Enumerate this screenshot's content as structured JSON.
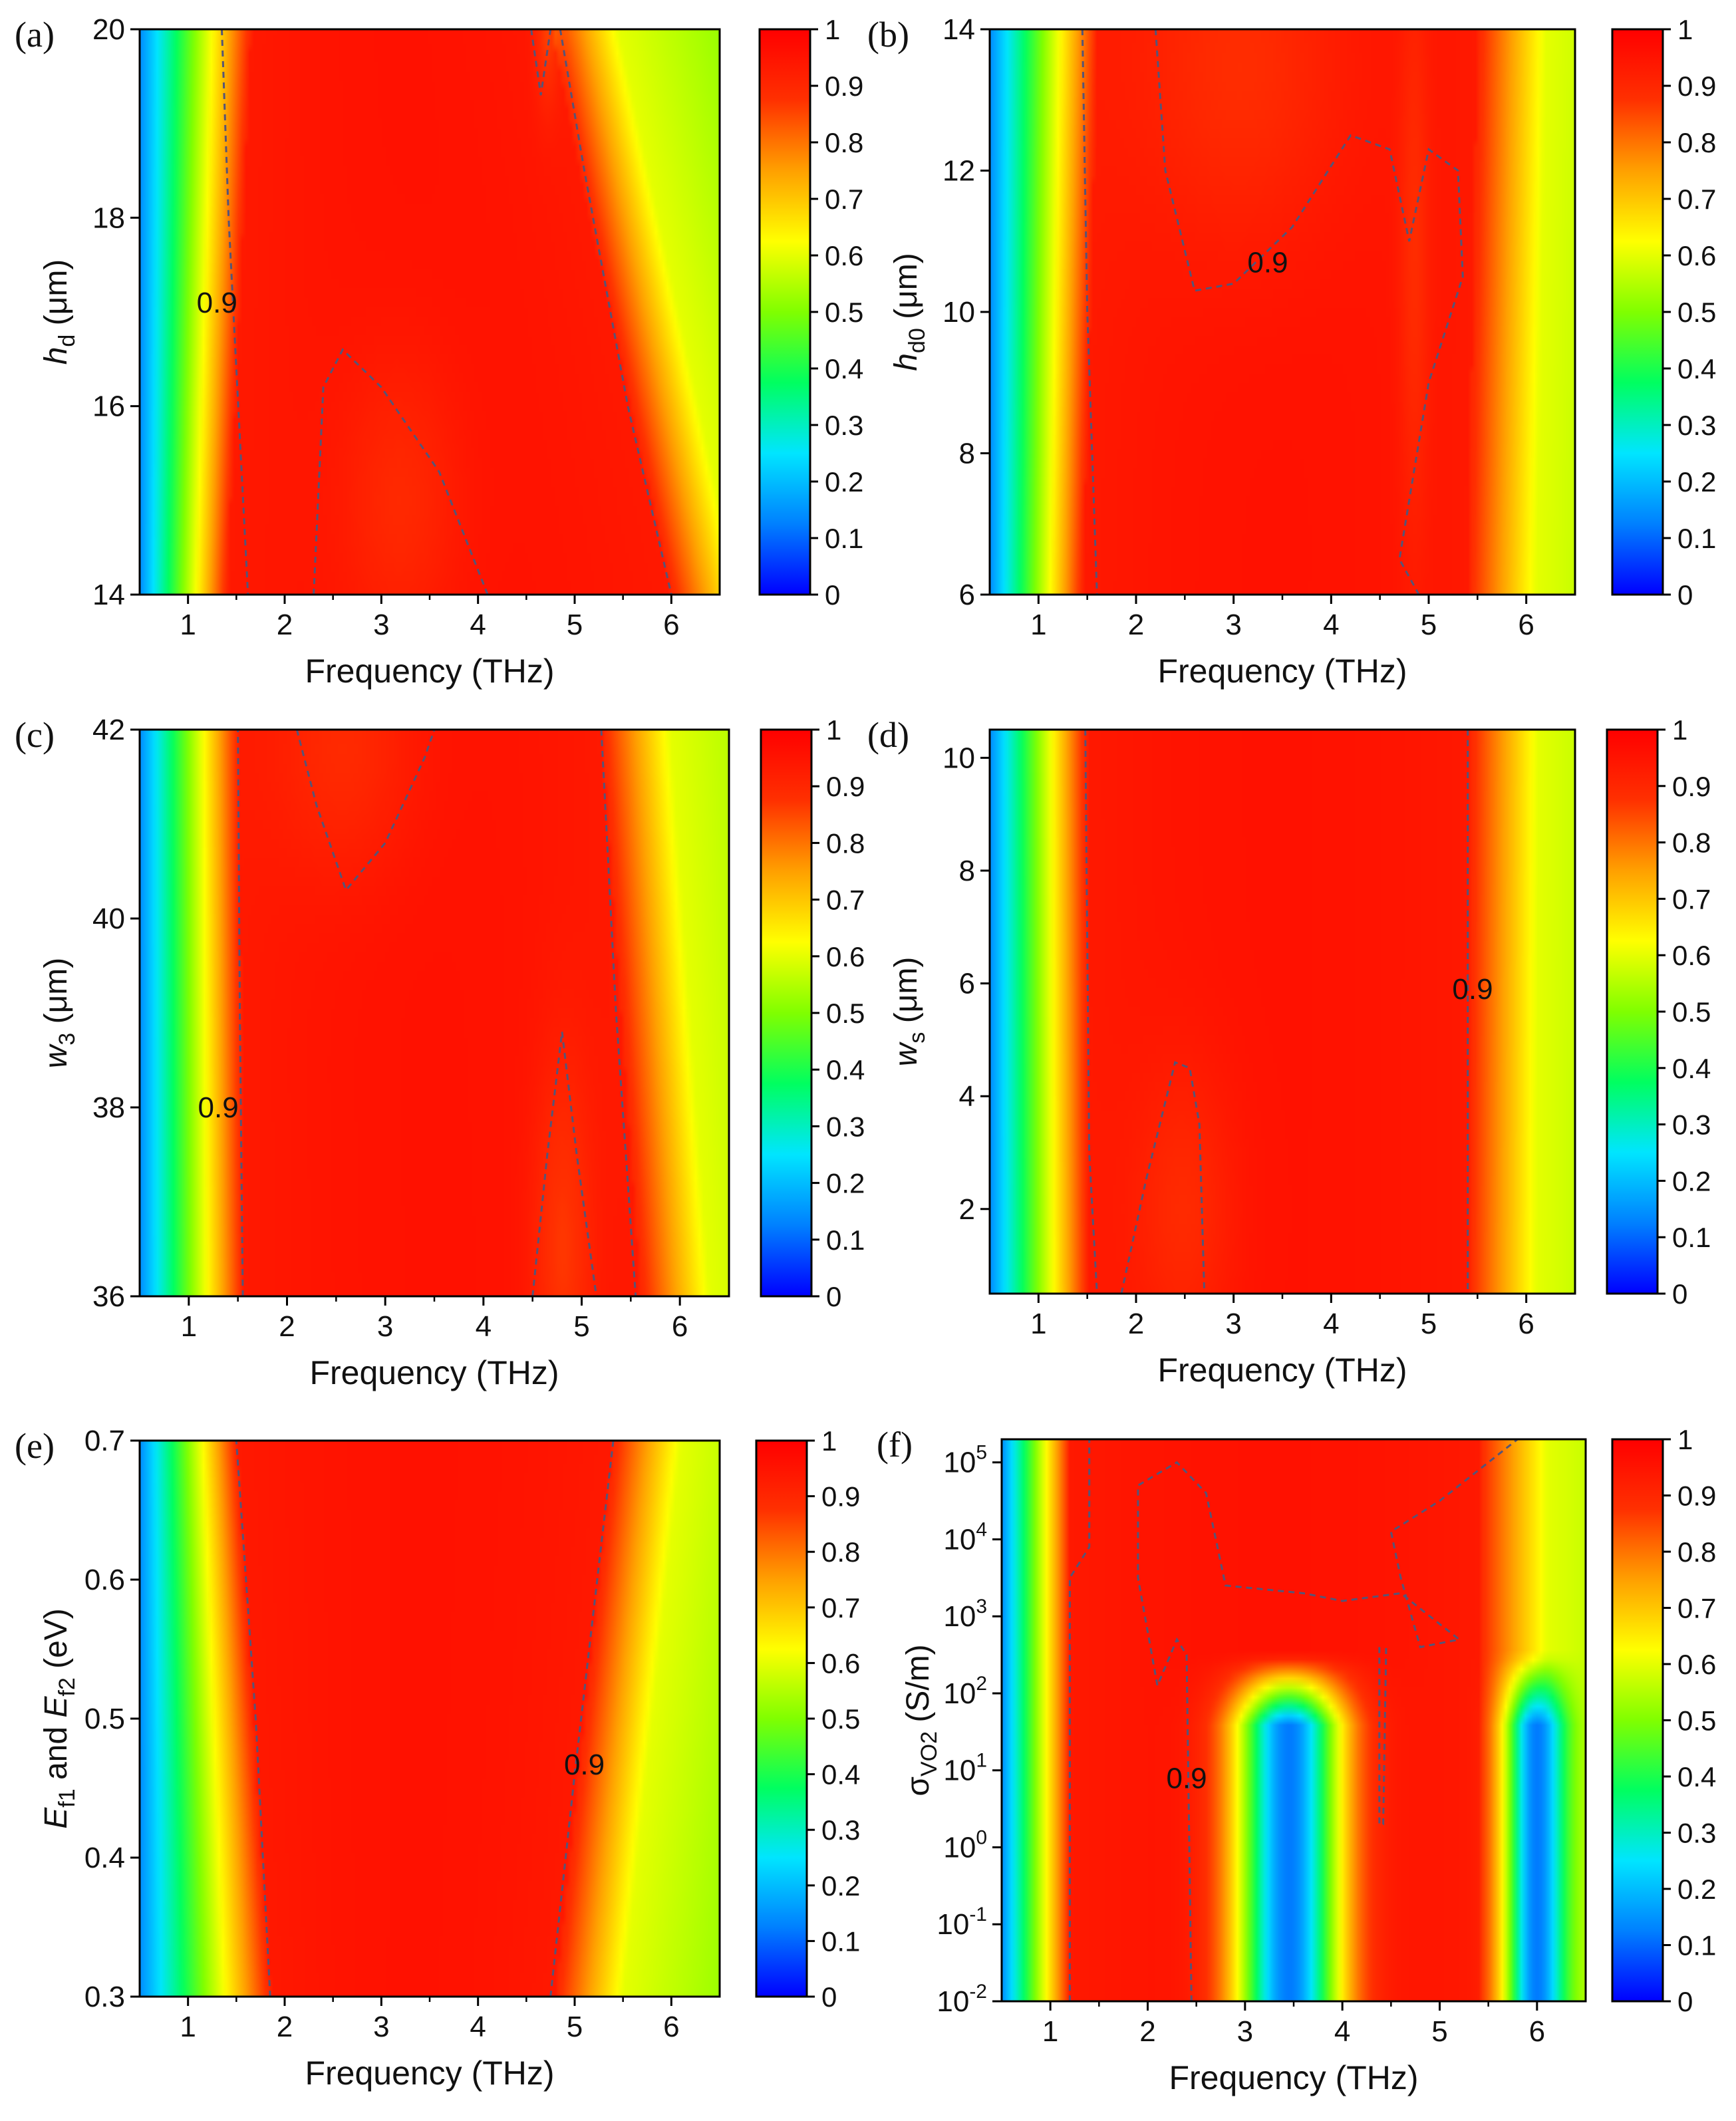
{
  "figure": {
    "colormap": {
      "stops": [
        "#0000ff",
        "#0080ff",
        "#00e5ff",
        "#00ff60",
        "#80ff00",
        "#ffff00",
        "#ffa000",
        "#ff3000",
        "#ff0000"
      ],
      "contour_color": "#555577"
    },
    "colorbar": {
      "ticks": [
        "0",
        "0.1",
        "0.2",
        "0.3",
        "0.4",
        "0.5",
        "0.6",
        "0.7",
        "0.8",
        "0.9",
        "1"
      ],
      "range": [
        0,
        1
      ]
    }
  },
  "chart_data": [
    {
      "panel": "(a)",
      "type": "heatmap",
      "xlabel": "Frequency (THz)",
      "ylabel": "h_d (μm)",
      "ylabel_main": "h",
      "ylabel_sub": "d",
      "ylabel_unit": " (μm)",
      "xlim": [
        0.5,
        6.5
      ],
      "ylim": [
        14,
        20
      ],
      "xticks": [
        "1",
        "2",
        "3",
        "4",
        "5",
        "6"
      ],
      "xtick_values": [
        1,
        2,
        3,
        4,
        5,
        6
      ],
      "yticks": [
        "14",
        "16",
        "18",
        "20"
      ],
      "ytick_values": [
        14,
        16,
        18,
        20
      ],
      "contour_level": "0.9",
      "contour_label_at": [
        1.3,
        17.1
      ],
      "band": {
        "low": [
          1.4,
          1.65
        ],
        "high": [
          6.0,
          4.75
        ]
      },
      "dips": [
        [
          3.2,
          15.0,
          0.6,
          1.5,
          0.06
        ]
      ],
      "notches": [
        [
          4.72,
          20.0,
          0.12,
          0.8,
          0.08
        ]
      ],
      "contours": [
        [
          [
            1.35,
            20
          ],
          [
            1.42,
            18
          ],
          [
            1.52,
            16
          ],
          [
            1.62,
            14
          ]
        ],
        [
          [
            2.3,
            14
          ],
          [
            2.4,
            16.2
          ],
          [
            2.6,
            16.6
          ],
          [
            3.0,
            16.2
          ],
          [
            3.6,
            15.3
          ],
          [
            4.1,
            14
          ]
        ],
        [
          [
            4.55,
            20
          ],
          [
            4.65,
            19.3
          ],
          [
            4.75,
            20
          ]
        ],
        [
          [
            4.85,
            20
          ],
          [
            5.1,
            18.5
          ],
          [
            5.55,
            16
          ],
          [
            6.0,
            14
          ]
        ]
      ]
    },
    {
      "panel": "(b)",
      "type": "heatmap",
      "xlabel": "Frequency (THz)",
      "ylabel": "h_d0 (μm)",
      "ylabel_main": "h",
      "ylabel_sub": "d0",
      "ylabel_unit": " (μm)",
      "xlim": [
        0.5,
        6.5
      ],
      "ylim": [
        6,
        14
      ],
      "xticks": [
        "1",
        "2",
        "3",
        "4",
        "5",
        "6"
      ],
      "xtick_values": [
        1,
        2,
        3,
        4,
        5,
        6
      ],
      "yticks": [
        "6",
        "8",
        "10",
        "12",
        "14"
      ],
      "ytick_values": [
        6,
        8,
        10,
        12,
        14
      ],
      "contour_level": "0.9",
      "contour_label_at": [
        3.35,
        10.7
      ],
      "band": {
        "low": [
          1.45,
          1.6
        ],
        "high": [
          5.4,
          5.5
        ]
      },
      "dips": [
        [
          3.1,
          13.5,
          1.0,
          2.5,
          0.07
        ]
      ],
      "notches": [
        [
          4.85,
          10.8,
          0.15,
          4.0,
          0.06
        ]
      ],
      "contours": [
        [
          [
            1.45,
            14
          ],
          [
            1.5,
            10
          ],
          [
            1.6,
            6
          ]
        ],
        [
          [
            2.2,
            14
          ],
          [
            2.3,
            12
          ],
          [
            2.6,
            10.3
          ],
          [
            3.0,
            10.4
          ],
          [
            3.6,
            11.2
          ],
          [
            4.2,
            12.5
          ],
          [
            4.6,
            12.3
          ],
          [
            4.8,
            11.0
          ],
          [
            5.0,
            12.3
          ],
          [
            5.3,
            12.0
          ],
          [
            5.35,
            10.5
          ],
          [
            5.0,
            9.0
          ],
          [
            4.7,
            6.5
          ],
          [
            4.9,
            6
          ]
        ]
      ]
    },
    {
      "panel": "(c)",
      "type": "heatmap",
      "xlabel": "Frequency (THz)",
      "ylabel": "w_3 (μm)",
      "ylabel_main": "w",
      "ylabel_sub": "3",
      "ylabel_unit": " (μm)",
      "xlim": [
        0.5,
        6.5
      ],
      "ylim": [
        36,
        42
      ],
      "xticks": [
        "1",
        "2",
        "3",
        "4",
        "5",
        "6"
      ],
      "xtick_values": [
        1,
        2,
        3,
        4,
        5,
        6
      ],
      "yticks": [
        "36",
        "38",
        "40",
        "42"
      ],
      "ytick_values": [
        36,
        38,
        40,
        42
      ],
      "contour_level": "0.9",
      "contour_label_at": [
        1.3,
        38.0
      ],
      "band": {
        "low": [
          1.55,
          1.5
        ],
        "high": [
          5.6,
          5.2
        ]
      },
      "dips": [
        [
          2.6,
          41.8,
          0.7,
          1.3,
          0.06
        ],
        [
          4.8,
          36.5,
          0.3,
          2.0,
          0.08
        ]
      ],
      "notches": [],
      "contours": [
        [
          [
            1.55,
            36
          ],
          [
            1.52,
            39
          ],
          [
            1.5,
            42
          ]
        ],
        [
          [
            2.1,
            42
          ],
          [
            2.3,
            41.2
          ],
          [
            2.6,
            40.3
          ],
          [
            3.0,
            40.8
          ],
          [
            3.4,
            41.7
          ],
          [
            3.5,
            42
          ]
        ],
        [
          [
            4.5,
            36
          ],
          [
            4.65,
            37.5
          ],
          [
            4.8,
            38.8
          ],
          [
            4.95,
            37.5
          ],
          [
            5.15,
            36
          ]
        ],
        [
          [
            5.2,
            42
          ],
          [
            5.35,
            39
          ],
          [
            5.55,
            36
          ]
        ]
      ]
    },
    {
      "panel": "(d)",
      "type": "heatmap",
      "xlabel": "Frequency (THz)",
      "ylabel": "w_s (μm)",
      "ylabel_main": "w",
      "ylabel_sub": "s",
      "ylabel_unit": " (μm)",
      "xlim": [
        0.5,
        6.5
      ],
      "ylim": [
        0.5,
        10.5
      ],
      "xticks": [
        "1",
        "2",
        "3",
        "4",
        "5",
        "6"
      ],
      "xtick_values": [
        1,
        2,
        3,
        4,
        5,
        6
      ],
      "yticks": [
        "2",
        "4",
        "6",
        "8",
        "10"
      ],
      "ytick_values": [
        2,
        4,
        6,
        8,
        10
      ],
      "contour_level": "0.9",
      "contour_label_at": [
        5.45,
        5.9
      ],
      "band": {
        "low": [
          1.5,
          1.48
        ],
        "high": [
          5.4,
          5.42
        ]
      },
      "dips": [
        [
          2.5,
          2.0,
          0.5,
          2.5,
          0.06
        ]
      ],
      "notches": [],
      "contours": [
        [
          [
            1.48,
            10.5
          ],
          [
            1.52,
            3
          ],
          [
            1.6,
            0.5
          ]
        ],
        [
          [
            1.85,
            0.5
          ],
          [
            2.1,
            2.5
          ],
          [
            2.4,
            4.6
          ],
          [
            2.55,
            4.5
          ],
          [
            2.65,
            3.5
          ],
          [
            2.7,
            0.5
          ]
        ],
        [
          [
            5.4,
            10.5
          ],
          [
            5.4,
            0.5
          ]
        ]
      ]
    },
    {
      "panel": "(e)",
      "type": "heatmap",
      "xlabel": "Frequency (THz)",
      "ylabel": "E_f1 and E_f2 (eV)",
      "ylabel_main": "E",
      "ylabel_sub": "f1",
      "ylabel_mid": " and ",
      "ylabel_main2": "E",
      "ylabel_sub2": "f2",
      "ylabel_unit": " (eV)",
      "xlim": [
        0.5,
        6.5
      ],
      "ylim": [
        0.3,
        0.7
      ],
      "xticks": [
        "1",
        "2",
        "3",
        "4",
        "5",
        "6"
      ],
      "xtick_values": [
        1,
        2,
        3,
        4,
        5,
        6
      ],
      "yticks": [
        "0.3",
        "0.4",
        "0.5",
        "0.6",
        "0.7"
      ],
      "ytick_values": [
        0.3,
        0.4,
        0.5,
        0.6,
        0.7
      ],
      "contour_level": "0.9",
      "contour_label_at": [
        5.1,
        0.467
      ],
      "band": {
        "low": [
          1.85,
          1.5
        ],
        "high": [
          4.8,
          5.4
        ]
      },
      "dips": [],
      "notches": [],
      "contours": [
        [
          [
            1.85,
            0.3
          ],
          [
            1.7,
            0.5
          ],
          [
            1.5,
            0.7
          ]
        ],
        [
          [
            4.75,
            0.3
          ],
          [
            5.0,
            0.46
          ],
          [
            5.4,
            0.7
          ]
        ]
      ]
    },
    {
      "panel": "(f)",
      "type": "heatmap",
      "xlabel": "Frequency (THz)",
      "ylabel": "σ_VO2 (S/m)",
      "ylabel_main": "σ",
      "ylabel_sub": "VO2",
      "ylabel_unit": " (S/m)",
      "xlim": [
        0.5,
        6.5
      ],
      "ylim": [
        -2,
        5.3
      ],
      "yscale": "log",
      "xticks": [
        "1",
        "2",
        "3",
        "4",
        "5",
        "6"
      ],
      "xtick_values": [
        1,
        2,
        3,
        4,
        5,
        6
      ],
      "ytick_exponents": [
        "-2",
        "-1",
        "0",
        "1",
        "2",
        "3",
        "4",
        "5"
      ],
      "ytick_values": [
        -2,
        -1,
        0,
        1,
        2,
        3,
        4,
        5
      ],
      "ytick_base": "10",
      "contour_level": "0.9",
      "contour_label_at": [
        2.4,
        0.9
      ],
      "band": {
        "low": [
          1.2,
          1.2
        ],
        "high": [
          5.4,
          5.4
        ]
      },
      "dips": [],
      "notches": [],
      "bluezones": [
        [
          3.45,
          2.5,
          0.55
        ],
        [
          6.0,
          2.5,
          0.3
        ]
      ],
      "contours": [
        [
          [
            1.2,
            -2
          ],
          [
            1.2,
            3.5
          ],
          [
            1.4,
            3.9
          ],
          [
            1.4,
            5.3
          ]
        ],
        [
          [
            2.45,
            -2
          ],
          [
            2.4,
            2.5
          ],
          [
            2.3,
            2.7
          ],
          [
            2.1,
            2.1
          ],
          [
            1.9,
            3.5
          ],
          [
            1.9,
            4.7
          ],
          [
            2.3,
            5.0
          ],
          [
            2.6,
            4.6
          ],
          [
            2.8,
            3.4
          ],
          [
            3.6,
            3.3
          ],
          [
            4.0,
            3.2
          ],
          [
            4.6,
            3.3
          ],
          [
            5.0,
            2.9
          ],
          [
            5.2,
            2.7
          ],
          [
            4.8,
            2.6
          ],
          [
            4.6,
            3.5
          ],
          [
            4.5,
            4.1
          ],
          [
            5.0,
            4.5
          ],
          [
            5.8,
            5.3
          ]
        ],
        [
          [
            4.38,
            2.6
          ],
          [
            4.38,
            0.3
          ],
          [
            4.42,
            0.3
          ],
          [
            4.45,
            2.6
          ]
        ]
      ]
    }
  ]
}
